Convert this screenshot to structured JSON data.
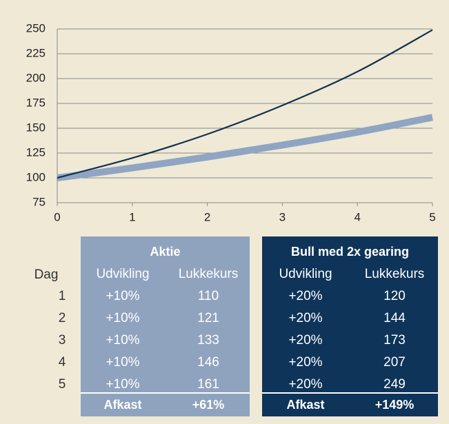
{
  "chart_data": {
    "type": "line",
    "x": [
      0,
      1,
      2,
      3,
      4,
      5
    ],
    "series": [
      {
        "name": "Aktie",
        "color": "#8fa5c3",
        "values": [
          100,
          110,
          121,
          133,
          146,
          161
        ]
      },
      {
        "name": "Bull med 2x gearing",
        "color": "#13304f",
        "values": [
          100,
          120,
          144,
          173,
          207,
          249
        ]
      }
    ],
    "xlim": [
      0,
      5
    ],
    "xticks": [
      0,
      1,
      2,
      3,
      4,
      5
    ],
    "ylim": [
      75,
      250
    ],
    "yticks": [
      75,
      100,
      125,
      150,
      175,
      200,
      225,
      250
    ],
    "grid": true
  },
  "table": {
    "row_label": "Dag",
    "columns": [
      "Udvikling",
      "Lukkekurs"
    ],
    "rows": [
      {
        "udvikling": [
          "+10%",
          "+20%"
        ]
      },
      {
        "udvikling": [
          "+10%",
          "+20%"
        ]
      },
      {
        "udvikling": [
          "+10%",
          "+20%"
        ]
      },
      {
        "udvikling": [
          "+10%",
          "+20%"
        ]
      },
      {
        "udvikling": [
          "+10%",
          "+20%"
        ]
      }
    ],
    "afkast": {
      "label": "Afkast",
      "values": [
        "+61%",
        "+149%"
      ]
    }
  }
}
